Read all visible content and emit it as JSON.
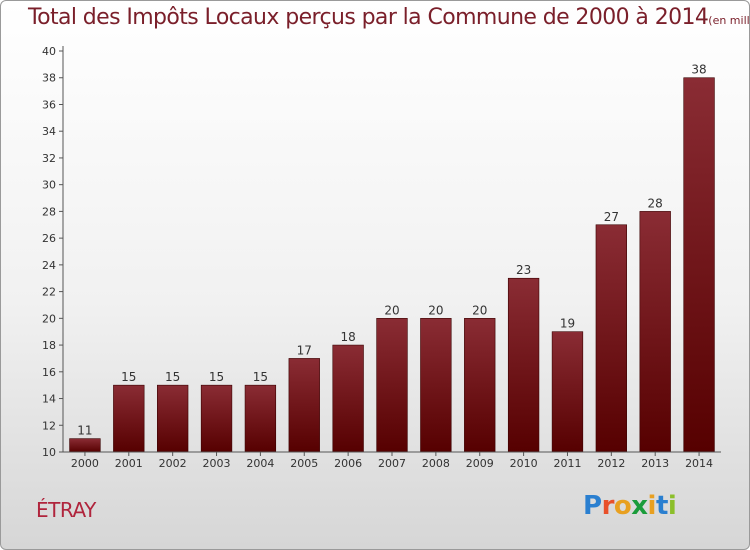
{
  "title": "Total des Impôts Locaux perçus par la Commune de 2000 à 2014",
  "title_unit": "(en milliers d'€)",
  "commune": "ÉTRAY",
  "logo": {
    "text": "Proxiti",
    "letters": [
      "P",
      "r",
      "o",
      "x",
      "i",
      "t",
      "i"
    ],
    "colors": [
      "#2a7fd0",
      "#e8502a",
      "#e8a020",
      "#1a9c3a",
      "#e8a020",
      "#2a7fd0",
      "#8cbf2a"
    ]
  },
  "colors": {
    "bar_top": "#8a2c34",
    "bar_bottom": "#560000",
    "axis": "#555555",
    "grid": "#cccccc",
    "label": "#333333"
  },
  "chart_data": {
    "type": "bar",
    "title": "Total des Impôts Locaux perçus par la Commune de 2000 à 2014",
    "xlabel": "",
    "ylabel": "",
    "categories": [
      "2000",
      "2001",
      "2002",
      "2003",
      "2004",
      "2005",
      "2006",
      "2007",
      "2008",
      "2009",
      "2010",
      "2011",
      "2012",
      "2013",
      "2014"
    ],
    "values": [
      11,
      15,
      15,
      15,
      15,
      17,
      18,
      20,
      20,
      20,
      23,
      19,
      27,
      28,
      38
    ],
    "ylim": [
      10,
      40
    ],
    "yticks": [
      10,
      12,
      14,
      16,
      18,
      20,
      22,
      24,
      26,
      28,
      30,
      32,
      34,
      36,
      38,
      40
    ],
    "grid": false,
    "data_labels": true
  }
}
